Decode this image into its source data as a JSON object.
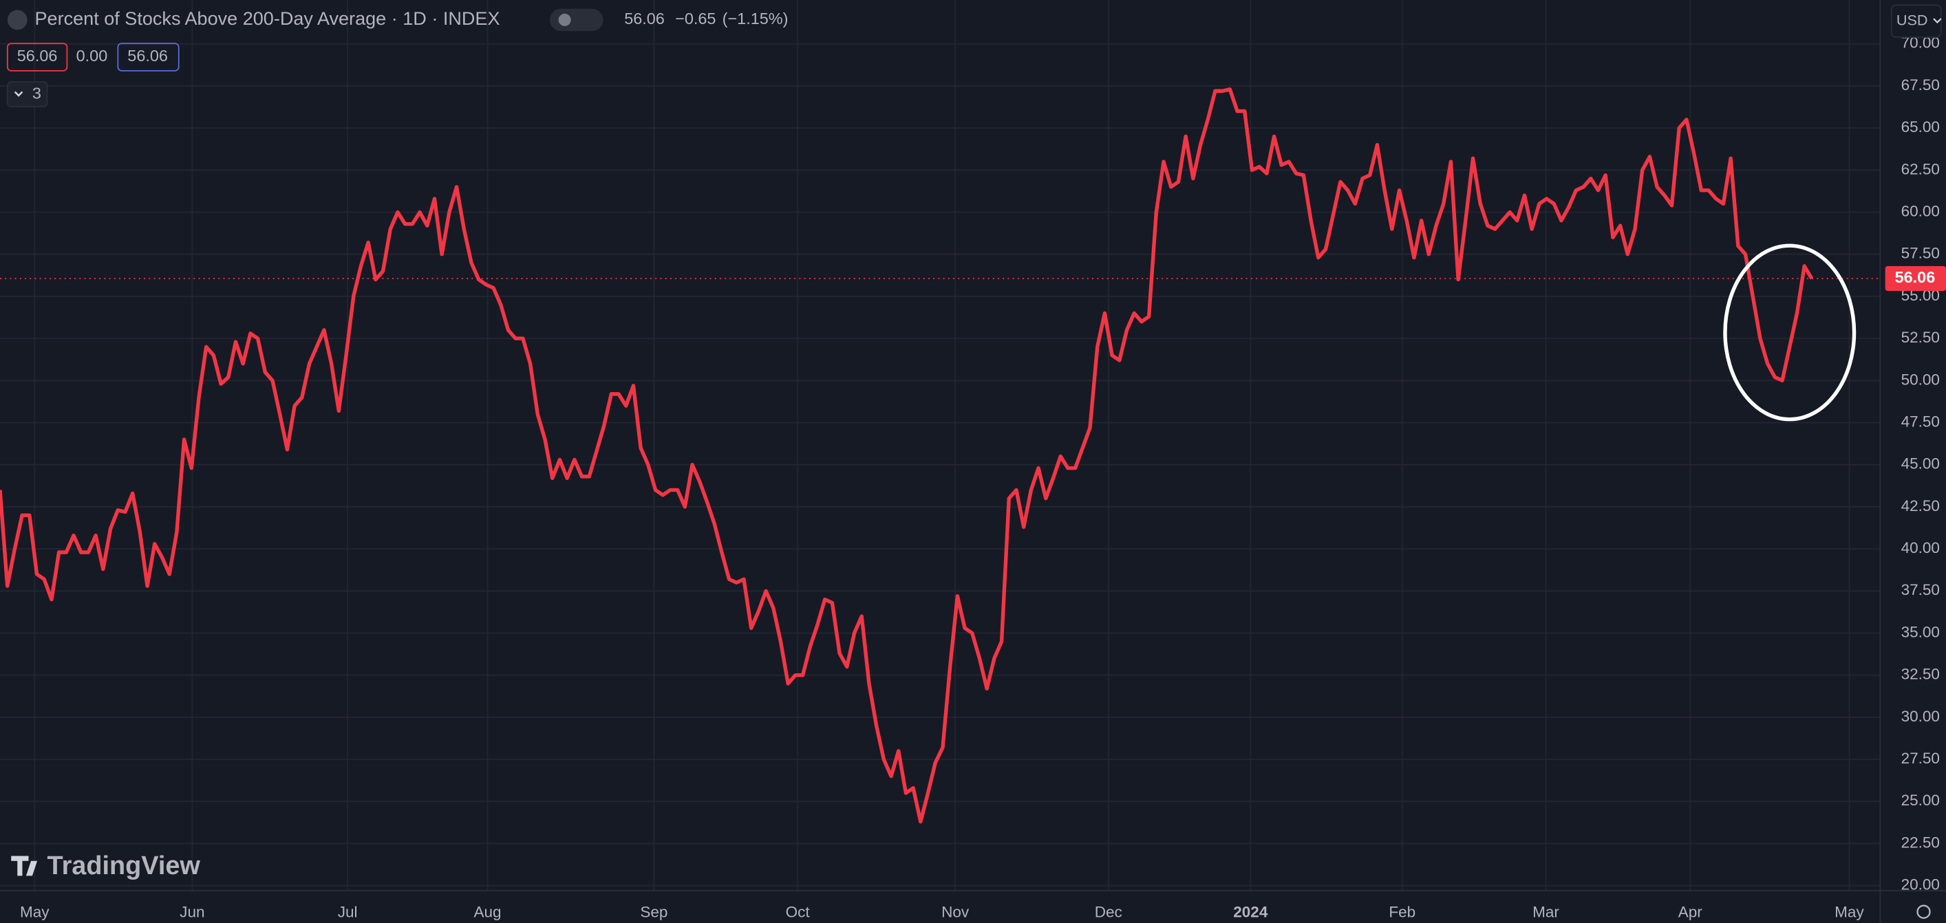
{
  "chart_data": {
    "type": "line",
    "title": "Percent of Stocks Above 200-Day Average · 1D · INDEX",
    "header_last": "56.06",
    "header_change": "−0.65",
    "header_change_pct": "(−1.15%)",
    "legend_values": [
      "56.06",
      "0.00",
      "56.06"
    ],
    "collapsed_count": "3",
    "currency": "USD",
    "brand": "TradingView",
    "last_price": 56.06,
    "color": "#f23645",
    "grid": true,
    "values": [
      43.5,
      37.8,
      40,
      42,
      42,
      38.5,
      38.2,
      37,
      39.8,
      39.8,
      40.8,
      39.8,
      39.8,
      40.8,
      38.8,
      41.2,
      42.3,
      42.2,
      43.3,
      41,
      37.8,
      40.3,
      39.5,
      38.5,
      41,
      46.5,
      44.8,
      49,
      52,
      51.5,
      49.8,
      50.2,
      52.3,
      51,
      52.8,
      52.5,
      50.5,
      50,
      48,
      45.9,
      48.5,
      49,
      51,
      52,
      53,
      51,
      48.2,
      51.5,
      55,
      56.8,
      58.2,
      56,
      56.5,
      59,
      60,
      59.3,
      59.3,
      60,
      59.2,
      60.8,
      57.5,
      60,
      61.5,
      59,
      57,
      56,
      55.7,
      55.5,
      54.5,
      53,
      52.5,
      52.5,
      51,
      48,
      46.5,
      44.2,
      45.3,
      44.2,
      45.3,
      44.3,
      44.3,
      45.8,
      47.3,
      49.2,
      49.2,
      48.5,
      49.7,
      46,
      45,
      43.5,
      43.2,
      43.5,
      43.5,
      42.5,
      45,
      44,
      42.8,
      41.5,
      39.8,
      38.2,
      38,
      38.2,
      35.3,
      36.3,
      37.5,
      36.5,
      34.5,
      32,
      32.5,
      32.5,
      34.2,
      35.5,
      37,
      36.8,
      33.8,
      33,
      35,
      36,
      32,
      29.5,
      27.5,
      26.5,
      28,
      25.5,
      25.8,
      23.8,
      25.5,
      27.3,
      28.2,
      33,
      37.2,
      35.3,
      35,
      33.5,
      31.7,
      33.5,
      34.5,
      43,
      43.5,
      41.3,
      43.5,
      44.8,
      43,
      44.2,
      45.5,
      44.8,
      44.8,
      46,
      47.2,
      52,
      54,
      51.5,
      51.2,
      53,
      54,
      53.5,
      53.8,
      60,
      63,
      61.5,
      61.8,
      64.5,
      62,
      64,
      65.5,
      67.2,
      67.2,
      67.3,
      66,
      66,
      62.5,
      62.7,
      62.3,
      64.5,
      62.8,
      63,
      62.3,
      62.2,
      59.5,
      57.3,
      57.8,
      59.8,
      61.8,
      61.3,
      60.5,
      62,
      62.2,
      64,
      61.3,
      59,
      61.3,
      59.5,
      57.3,
      59.5,
      57.5,
      59.2,
      60.5,
      63,
      56,
      59.5,
      63.2,
      60.5,
      59.2,
      59,
      59.5,
      60,
      59.5,
      61,
      59,
      60.5,
      60.8,
      60.5,
      59.5,
      60.3,
      61.3,
      61.5,
      62,
      61.3,
      62.2,
      58.5,
      59.2,
      57.5,
      59,
      62.5,
      63.3,
      61.5,
      61,
      60.4,
      65,
      65.5,
      63.5,
      61.3,
      61.3,
      60.8,
      60.5,
      63.2,
      58,
      57.5,
      55,
      52.5,
      51,
      50.2,
      50,
      52,
      54,
      56.8,
      56.06
    ],
    "xlim": [
      0,
      255.3
    ],
    "xticks": [
      {
        "value": 4.7,
        "label": "May"
      },
      {
        "value": 26.1,
        "label": "Jun"
      },
      {
        "value": 47.2,
        "label": "Jul"
      },
      {
        "value": 66.2,
        "label": "Aug"
      },
      {
        "value": 88.8,
        "label": "Sep"
      },
      {
        "value": 108.3,
        "label": "Oct"
      },
      {
        "value": 129.7,
        "label": "Nov"
      },
      {
        "value": 150.5,
        "label": "Dec"
      },
      {
        "value": 169.8,
        "label": "2024"
      },
      {
        "value": 190.4,
        "label": "Feb"
      },
      {
        "value": 209.9,
        "label": "Mar"
      },
      {
        "value": 229.5,
        "label": "Apr"
      },
      {
        "value": 251.1,
        "label": "May"
      }
    ],
    "ylim": [
      19.7,
      72.6
    ],
    "yticks": [
      {
        "value": 20,
        "label": "20.00"
      },
      {
        "value": 22.5,
        "label": "22.50"
      },
      {
        "value": 25,
        "label": "25.00"
      },
      {
        "value": 27.5,
        "label": "27.50"
      },
      {
        "value": 30,
        "label": "30.00"
      },
      {
        "value": 32.5,
        "label": "32.50"
      },
      {
        "value": 35,
        "label": "35.00"
      },
      {
        "value": 37.5,
        "label": "37.50"
      },
      {
        "value": 40,
        "label": "40.00"
      },
      {
        "value": 42.5,
        "label": "42.50"
      },
      {
        "value": 45,
        "label": "45.00"
      },
      {
        "value": 47.5,
        "label": "47.50"
      },
      {
        "value": 50,
        "label": "50.00"
      },
      {
        "value": 52.5,
        "label": "52.50"
      },
      {
        "value": 55,
        "label": "55.00"
      },
      {
        "value": 57.5,
        "label": "57.50"
      },
      {
        "value": 60,
        "label": "60.00"
      },
      {
        "value": 62.5,
        "label": "62.50"
      },
      {
        "value": 65,
        "label": "65.00"
      },
      {
        "value": 67.5,
        "label": "67.50"
      },
      {
        "value": 70,
        "label": "70.00"
      }
    ]
  }
}
